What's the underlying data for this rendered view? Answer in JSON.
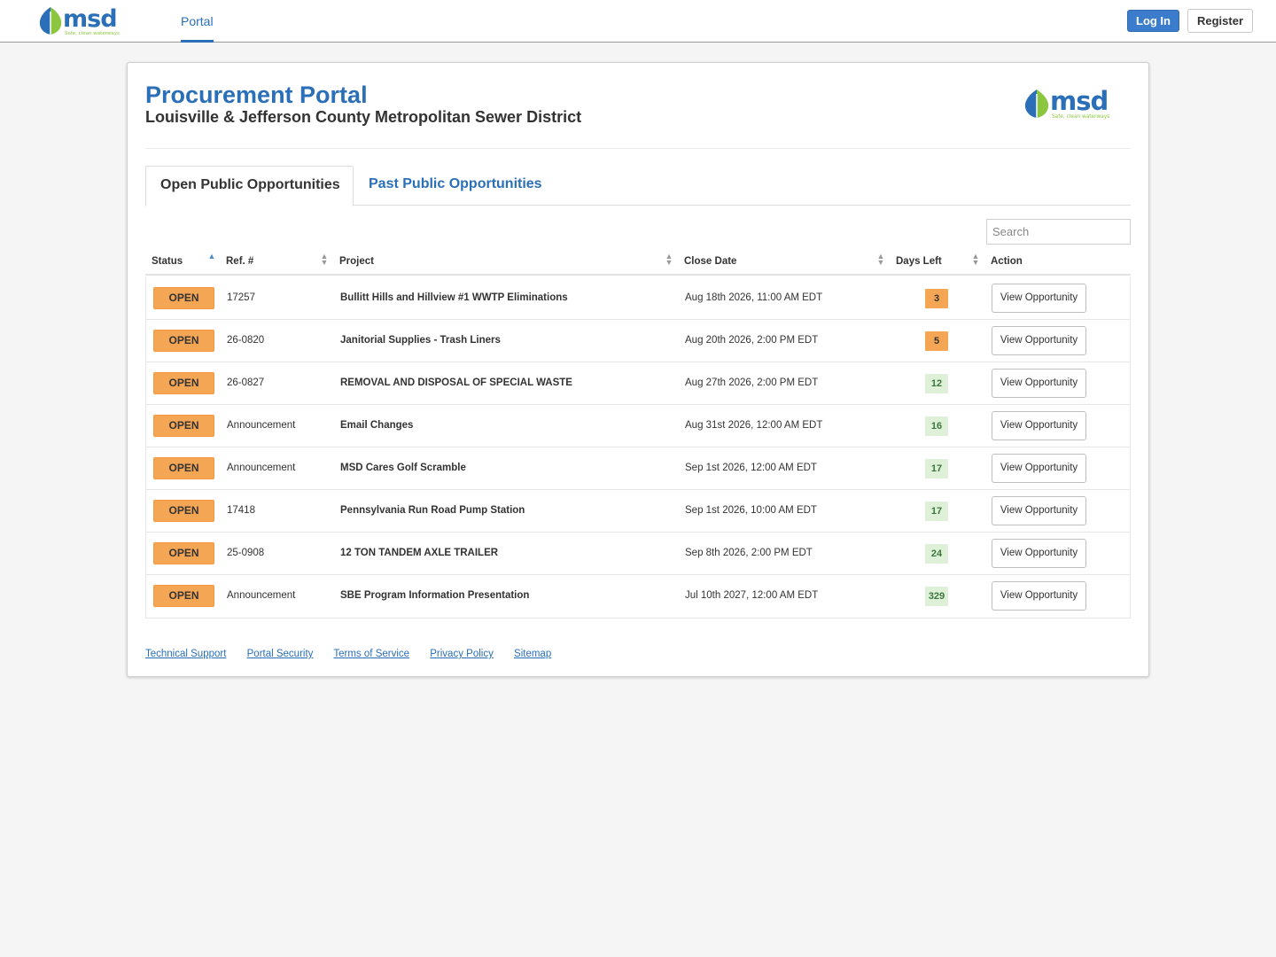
{
  "topnav": {
    "logo_text": "msd",
    "logo_tagline": "Safe, clean waterways",
    "tab_portal": "Portal",
    "login_label": "Log In",
    "register_label": "Register"
  },
  "header": {
    "title": "Procurement Portal",
    "subtitle": "Louisville & Jefferson County Metropolitan Sewer District"
  },
  "tabs": {
    "open": "Open Public Opportunities",
    "past": "Past Public Opportunities"
  },
  "search": {
    "placeholder": "Search"
  },
  "columns": {
    "status": "Status",
    "ref": "Ref. #",
    "project": "Project",
    "close_date": "Close Date",
    "days_left": "Days Left",
    "action": "Action"
  },
  "rows": [
    {
      "status": "OPEN",
      "ref": "17257",
      "project": "Bullitt Hills and Hillview #1 WWTP Eliminations",
      "close": "Aug 18th 2026, 11:00 AM EDT",
      "days": "3",
      "level": "warn",
      "action": "View Opportunity"
    },
    {
      "status": "OPEN",
      "ref": "26-0820",
      "project": "Janitorial Supplies - Trash Liners",
      "close": "Aug 20th 2026, 2:00 PM EDT",
      "days": "5",
      "level": "warn",
      "action": "View Opportunity"
    },
    {
      "status": "OPEN",
      "ref": "26-0827",
      "project": "REMOVAL AND DISPOSAL OF SPECIAL WASTE",
      "close": "Aug 27th 2026, 2:00 PM EDT",
      "days": "12",
      "level": "ok",
      "action": "View Opportunity"
    },
    {
      "status": "OPEN",
      "ref": "Announcement",
      "project": "Email Changes",
      "close": "Aug 31st 2026, 12:00 AM EDT",
      "days": "16",
      "level": "ok",
      "action": "View Opportunity"
    },
    {
      "status": "OPEN",
      "ref": "Announcement",
      "project": "MSD Cares Golf Scramble",
      "close": "Sep 1st 2026, 12:00 AM EDT",
      "days": "17",
      "level": "ok",
      "action": "View Opportunity"
    },
    {
      "status": "OPEN",
      "ref": "17418",
      "project": "Pennsylvania Run Road Pump Station",
      "close": "Sep 1st 2026, 10:00 AM EDT",
      "days": "17",
      "level": "ok",
      "action": "View Opportunity"
    },
    {
      "status": "OPEN",
      "ref": "25-0908",
      "project": "12 TON TANDEM AXLE TRAILER",
      "close": "Sep 8th 2026, 2:00 PM EDT",
      "days": "24",
      "level": "ok",
      "action": "View Opportunity"
    },
    {
      "status": "OPEN",
      "ref": "Announcement",
      "project": "SBE Program Information Presentation",
      "close": "Jul 10th 2027, 12:00 AM EDT",
      "days": "329",
      "level": "ok",
      "action": "View Opportunity"
    }
  ],
  "footer": {
    "links": [
      "Technical Support",
      "Portal Security",
      "Terms of Service",
      "Privacy Policy",
      "Sitemap"
    ]
  },
  "colors": {
    "brand_blue": "#2a6fb7",
    "brand_green": "#8cc63f",
    "open_badge": "#f5a654",
    "days_ok_bg": "#dff0d8",
    "days_ok_text": "#3c763d"
  }
}
